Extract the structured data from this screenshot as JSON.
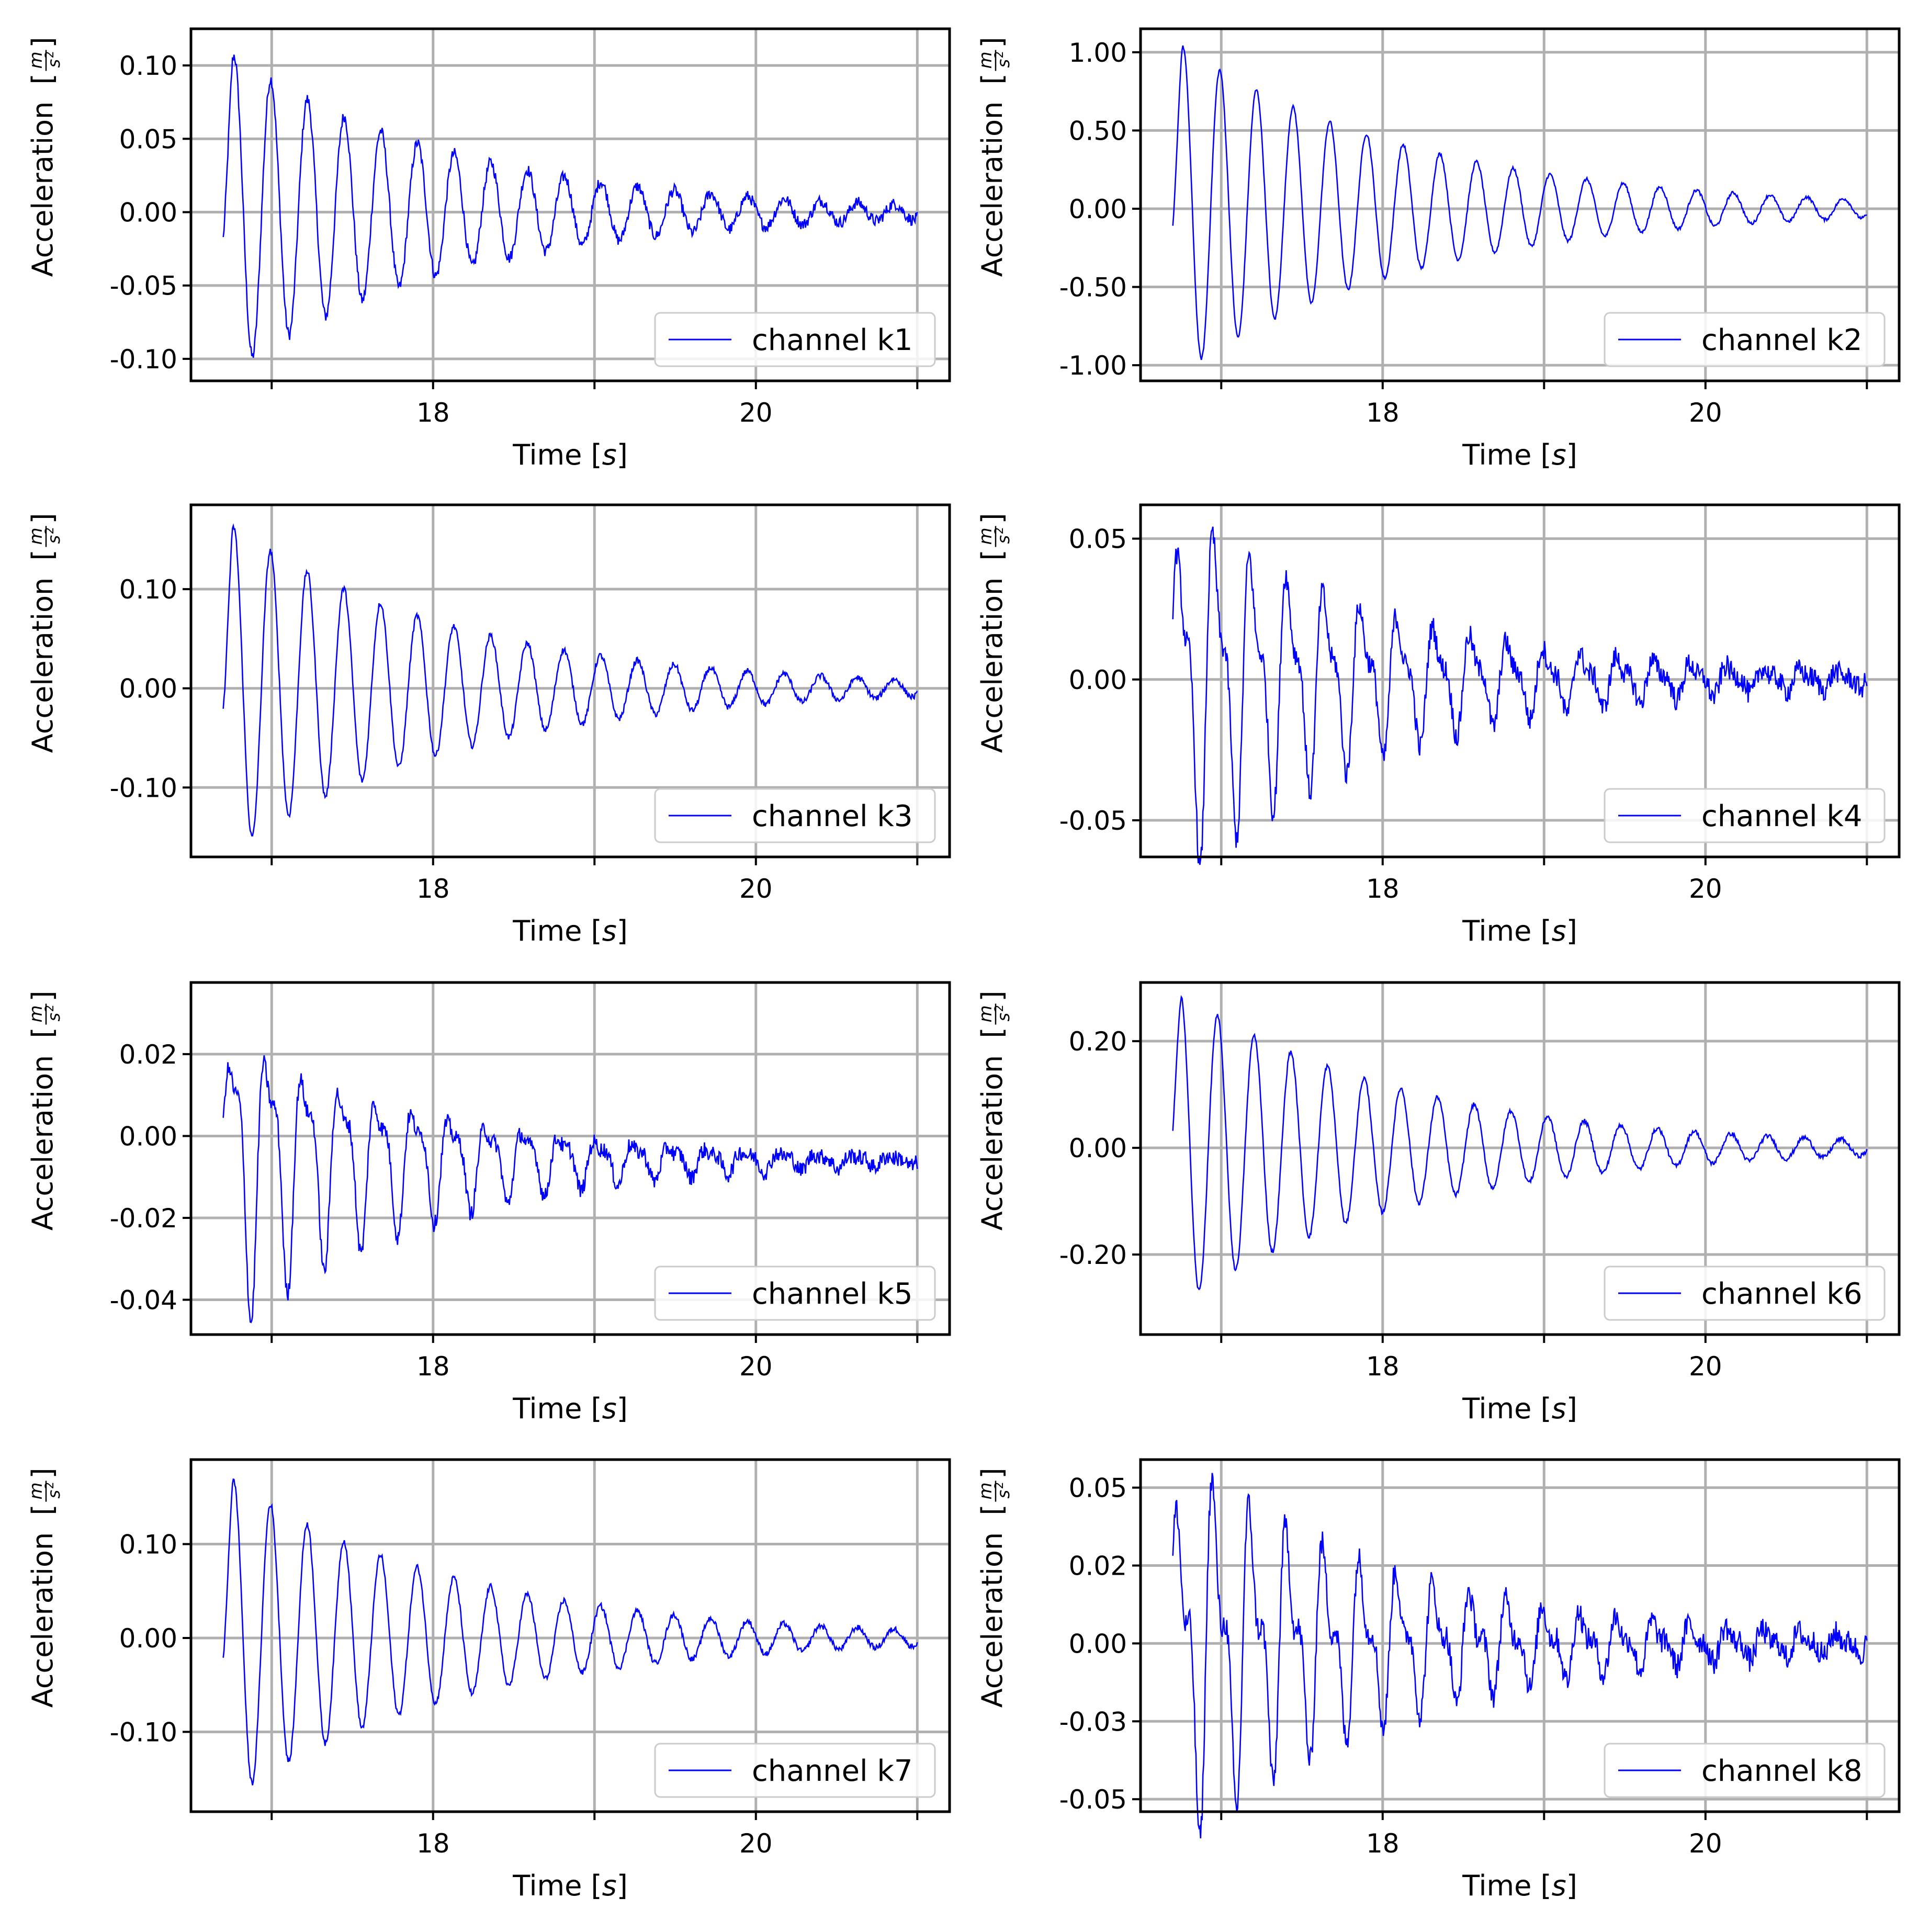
{
  "figure": {
    "xlabel_main": "Time",
    "xlabel_unit": "s",
    "ylabel_main": "Acceleration",
    "ylabel_unit_num": "m",
    "ylabel_unit_den": "s",
    "ylabel_unit_exp": "2",
    "line_color": "#0000ff",
    "grid_color": "#b0b0b0"
  },
  "chart_data": [
    {
      "type": "line",
      "legend": "channel k1",
      "legend_loc": "lower right",
      "grid": true,
      "xlim": [
        16.5,
        21.2
      ],
      "ylim": [
        -0.115,
        0.125
      ],
      "xticks": [
        17,
        18,
        19,
        20,
        21
      ],
      "xticklabels": [
        "",
        "18",
        "",
        "20",
        ""
      ],
      "yticks": [
        -0.1,
        -0.05,
        0.0,
        0.05,
        0.1
      ],
      "yticklabels": [
        "-0.10",
        "-0.05",
        "0.00",
        "0.05",
        "0.10"
      ],
      "series": [
        {
          "name": "channel k1",
          "t0": 16.7,
          "f": 4.4,
          "amp": 0.112,
          "decay": 0.72,
          "offset": 0.0,
          "phase": -0.3,
          "n2": 0.0,
          "noise": 0.004
        }
      ]
    },
    {
      "type": "line",
      "legend": "channel k2",
      "legend_loc": "lower right",
      "grid": true,
      "xlim": [
        16.5,
        21.2
      ],
      "ylim": [
        -1.1,
        1.15
      ],
      "xticks": [
        17,
        18,
        19,
        20,
        21
      ],
      "xticklabels": [
        "",
        "18",
        "",
        "20",
        ""
      ],
      "yticks": [
        -1.0,
        -0.5,
        0.0,
        0.5,
        1.0
      ],
      "yticklabels": [
        "-1.00",
        "-0.50",
        "0.00",
        "0.50",
        "1.00"
      ],
      "series": [
        {
          "name": "channel k2",
          "t0": 16.7,
          "f": 4.4,
          "amp": 1.08,
          "decay": 0.68,
          "offset": 0.0,
          "phase": -0.2,
          "n2": 0.0,
          "noise": 0.01
        }
      ]
    },
    {
      "type": "line",
      "legend": "channel k3",
      "legend_loc": "lower right",
      "grid": true,
      "xlim": [
        16.5,
        21.2
      ],
      "ylim": [
        -0.17,
        0.185
      ],
      "xticks": [
        17,
        18,
        19,
        20,
        21
      ],
      "xticklabels": [
        "",
        "18",
        "",
        "20",
        ""
      ],
      "yticks": [
        -0.1,
        0.0,
        0.1
      ],
      "yticklabels": [
        "-0.10",
        "0.00",
        "0.10"
      ],
      "series": [
        {
          "name": "channel k3",
          "t0": 16.7,
          "f": 4.4,
          "amp": 0.17,
          "decay": 0.7,
          "offset": 0.0,
          "phase": -0.25,
          "n2": 0.0,
          "noise": 0.003
        }
      ]
    },
    {
      "type": "line",
      "legend": "channel k4",
      "legend_loc": "lower right",
      "grid": true,
      "xlim": [
        16.5,
        21.2
      ],
      "ylim": [
        -0.063,
        0.062
      ],
      "xticks": [
        17,
        18,
        19,
        20,
        21
      ],
      "xticklabels": [
        "",
        "18",
        "",
        "20",
        ""
      ],
      "yticks": [
        -0.05,
        0.0,
        0.05
      ],
      "yticklabels": [
        "-0.05",
        "0.00",
        "0.05"
      ],
      "series": [
        {
          "name": "channel k4",
          "t0": 16.7,
          "f": 4.4,
          "amp": 0.056,
          "decay": 0.75,
          "offset": 0.0,
          "phase": 0.4,
          "n2": 0.45,
          "noise": 0.004
        }
      ]
    },
    {
      "type": "line",
      "legend": "channel k5",
      "legend_loc": "lower right",
      "grid": true,
      "xlim": [
        16.5,
        21.2
      ],
      "ylim": [
        -0.0485,
        0.0375
      ],
      "xticks": [
        17,
        18,
        19,
        20,
        21
      ],
      "xticklabels": [
        "",
        "18",
        "",
        "20",
        ""
      ],
      "yticks": [
        -0.04,
        -0.02,
        0.0,
        0.02
      ],
      "yticklabels": [
        "-0.04",
        "-0.02",
        "0.00",
        "0.02"
      ],
      "series": [
        {
          "name": "channel k5",
          "t0": 16.7,
          "f": 4.4,
          "amp": 0.033,
          "decay": 0.82,
          "offset": -0.006,
          "phase": 0.1,
          "n2": 0.4,
          "noise": 0.002
        }
      ]
    },
    {
      "type": "line",
      "legend": "channel k6",
      "legend_loc": "lower right",
      "grid": true,
      "xlim": [
        16.5,
        21.2
      ],
      "ylim": [
        -0.35,
        0.31
      ],
      "xticks": [
        17,
        18,
        19,
        20,
        21
      ],
      "xticklabels": [
        "",
        "18",
        "",
        "20",
        ""
      ],
      "yticks": [
        -0.2,
        0.0,
        0.2
      ],
      "yticklabels": [
        "-0.20",
        "0.00",
        "0.20"
      ],
      "series": [
        {
          "name": "channel k6",
          "t0": 16.7,
          "f": 4.4,
          "amp": 0.3,
          "decay": 0.7,
          "offset": 0.0,
          "phase": 0.2,
          "n2": 0.0,
          "noise": 0.004
        }
      ]
    },
    {
      "type": "line",
      "legend": "channel k7",
      "legend_loc": "lower right",
      "grid": true,
      "xlim": [
        16.5,
        21.2
      ],
      "ylim": [
        -0.185,
        0.19
      ],
      "xticks": [
        17,
        18,
        19,
        20,
        21
      ],
      "xticklabels": [
        "",
        "18",
        "",
        "20",
        ""
      ],
      "yticks": [
        -0.1,
        0.0,
        0.1
      ],
      "yticklabels": [
        "-0.10",
        "0.00",
        "0.10"
      ],
      "series": [
        {
          "name": "channel k7",
          "t0": 16.7,
          "f": 4.4,
          "amp": 0.175,
          "decay": 0.7,
          "offset": 0.0,
          "phase": -0.25,
          "n2": 0.0,
          "noise": 0.003
        }
      ]
    },
    {
      "type": "line",
      "legend": "channel k8",
      "legend_loc": "lower right",
      "grid": true,
      "xlim": [
        16.5,
        21.2
      ],
      "ylim": [
        -0.054,
        0.059
      ],
      "xticks": [
        17,
        18,
        19,
        20,
        21
      ],
      "xticklabels": [
        "",
        "18",
        "",
        "20",
        ""
      ],
      "yticks": [
        -0.05,
        -0.025,
        0.0,
        0.025,
        0.05
      ],
      "yticklabels": [
        "-0.05",
        "-0.03",
        "0.00",
        "0.02",
        "0.05"
      ],
      "series": [
        {
          "name": "channel k8",
          "t0": 16.7,
          "f": 4.4,
          "amp": 0.05,
          "decay": 0.72,
          "offset": 0.0,
          "phase": 0.5,
          "n2": 0.55,
          "noise": 0.004
        }
      ]
    }
  ]
}
